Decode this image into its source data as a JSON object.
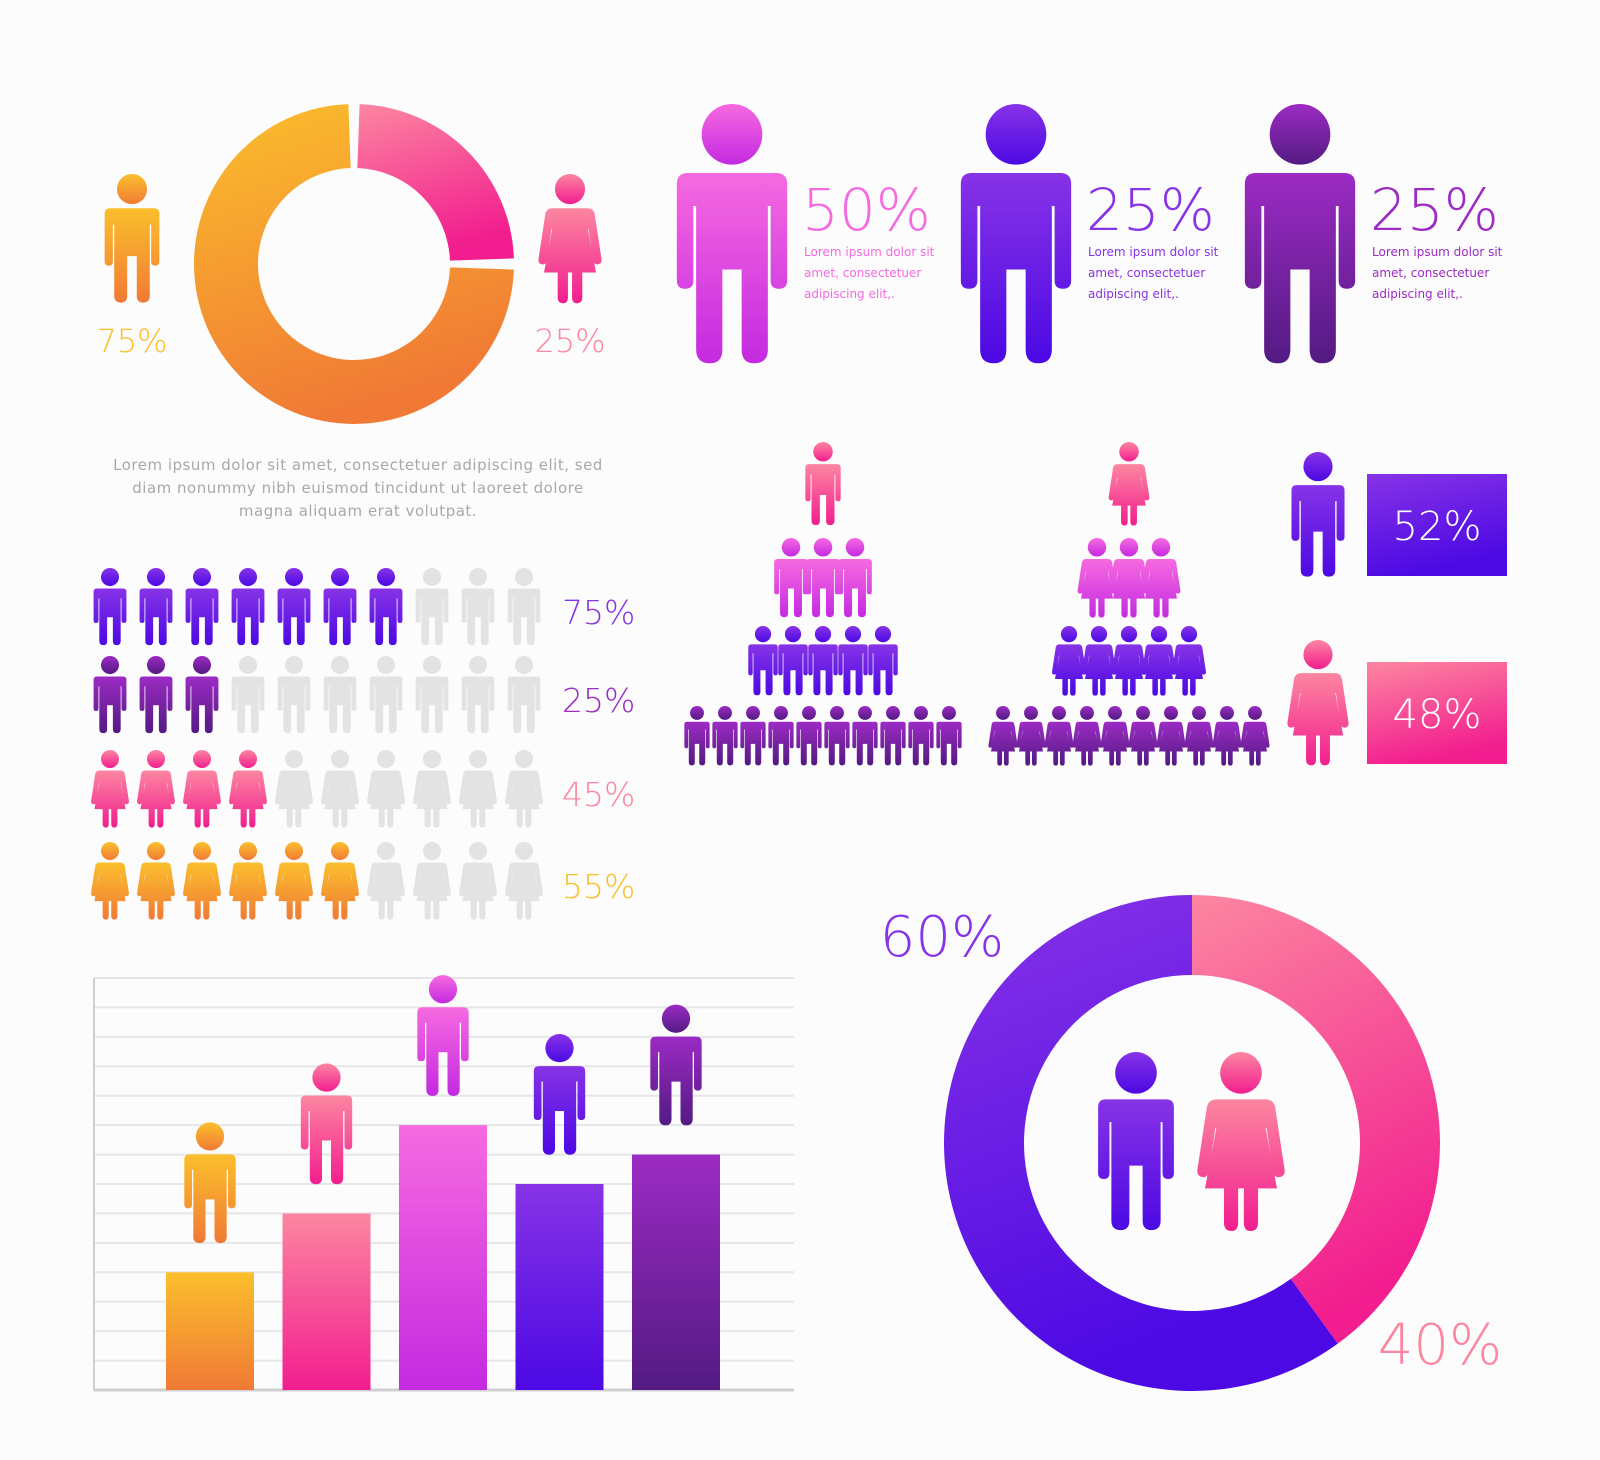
{
  "colors": {
    "orange_a": "#fbbf2c",
    "orange_b": "#f07a35",
    "pink_a": "#fc86a0",
    "pink_b": "#f21e8f",
    "magenta_a": "#f66ae0",
    "magenta_b": "#c42ae0",
    "violet_a": "#8733e6",
    "violet_b": "#4c09e4",
    "purple_a": "#9c2bc4",
    "purple_b": "#531a82",
    "grey": "#e3e3e3"
  },
  "icons": {
    "male": "person-male-icon",
    "female": "person-female-icon"
  },
  "chart_data": [
    {
      "type": "pie",
      "name": "gender-donut-top",
      "slices": [
        {
          "label": "75%",
          "value": 75,
          "icon": "person-male-icon",
          "color": "orange"
        },
        {
          "label": "25%",
          "value": 25,
          "icon": "person-female-icon",
          "color": "pink"
        }
      ]
    },
    {
      "type": "table",
      "name": "big-figure-stats",
      "items": [
        {
          "value": "50%",
          "desc": [
            "Lorem ipsum dolor sit",
            "amet, consectetuer",
            "adipiscing elit,."
          ],
          "color": "magenta"
        },
        {
          "value": "25%",
          "desc": [
            "Lorem ipsum dolor sit",
            "amet, consectetuer",
            "adipiscing elit,."
          ],
          "color": "violet"
        },
        {
          "value": "25%",
          "desc": [
            "Lorem ipsum dolor sit",
            "amet, consectetuer",
            "adipiscing elit,."
          ],
          "color": "purple"
        }
      ]
    },
    {
      "type": "table",
      "name": "pictogram-rows",
      "total": 10,
      "rows": [
        {
          "label": "75%",
          "filled": 7,
          "icon": "person-male-icon",
          "color": "violet"
        },
        {
          "label": "25%",
          "filled": 3,
          "icon": "person-male-icon",
          "color": "purple"
        },
        {
          "label": "45%",
          "filled": 4,
          "icon": "person-female-icon",
          "color": "pink"
        },
        {
          "label": "55%",
          "filled": 6,
          "icon": "person-female-icon",
          "color": "orange"
        }
      ]
    },
    {
      "type": "table",
      "name": "pyramids",
      "levels": [
        1,
        3,
        5,
        10
      ],
      "pyramids": [
        {
          "icon": "person-male-icon"
        },
        {
          "icon": "person-female-icon"
        }
      ]
    },
    {
      "type": "table",
      "name": "gender-boxes",
      "items": [
        {
          "value": "52%",
          "icon": "person-male-icon",
          "color": "violet"
        },
        {
          "value": "48%",
          "icon": "person-female-icon",
          "color": "pink"
        }
      ]
    },
    {
      "type": "bar",
      "name": "people-bar-chart",
      "categories": [
        "",
        "",
        "",
        "",
        ""
      ],
      "values": [
        2,
        3,
        4.5,
        3.5,
        4
      ],
      "ylim": [
        0,
        7
      ],
      "grid": true,
      "bars": [
        {
          "color": "orange",
          "icon": "person-male-icon"
        },
        {
          "color": "pink",
          "icon": "person-male-icon"
        },
        {
          "color": "magenta",
          "icon": "person-male-icon"
        },
        {
          "color": "violet",
          "icon": "person-male-icon"
        },
        {
          "color": "purple",
          "icon": "person-male-icon"
        }
      ]
    },
    {
      "type": "pie",
      "name": "gender-donut-bottom",
      "slices": [
        {
          "label": "60%",
          "value": 60,
          "color": "violet",
          "icon": "person-male-icon"
        },
        {
          "label": "40%",
          "value": 40,
          "color": "pink",
          "icon": "person-female-icon"
        }
      ]
    }
  ],
  "paragraph": [
    "Lorem ipsum dolor sit amet, consectetuer adipiscing elit, sed",
    "diam nonummy nibh euismod tincidunt ut laoreet dolore",
    "magna aliquam erat volutpat."
  ]
}
